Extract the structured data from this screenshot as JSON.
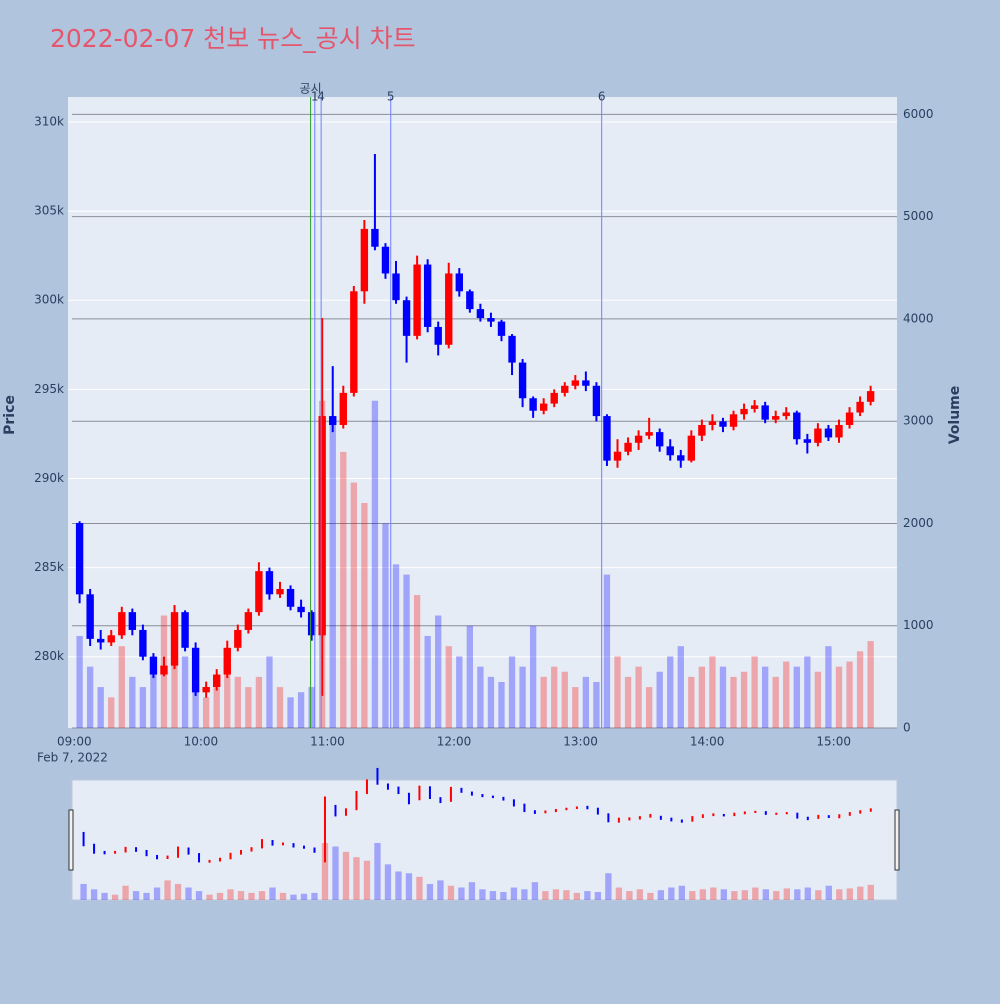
{
  "chart_data": {
    "type": "candlestick",
    "title": "2022-02-07 천보 뉴스_공시 차트",
    "y_label": "Price",
    "y2_label": "Volume",
    "x_date_label": "Feb 7, 2022",
    "up_color": "#ff0000",
    "down_color": "#0000ff",
    "grid": true,
    "rangeslider": true,
    "x": [
      "2022-02-07 09:00",
      "2022-02-07 09:05",
      "2022-02-07 09:10",
      "2022-02-07 09:15",
      "2022-02-07 09:20",
      "2022-02-07 09:25",
      "2022-02-07 09:30",
      "2022-02-07 09:35",
      "2022-02-07 09:40",
      "2022-02-07 09:45",
      "2022-02-07 09:50",
      "2022-02-07 09:55",
      "2022-02-07 10:00",
      "2022-02-07 10:05",
      "2022-02-07 10:10",
      "2022-02-07 10:15",
      "2022-02-07 10:20",
      "2022-02-07 10:25",
      "2022-02-07 10:30",
      "2022-02-07 10:35",
      "2022-02-07 10:40",
      "2022-02-07 10:45",
      "2022-02-07 10:50",
      "2022-02-07 10:55",
      "2022-02-07 11:00",
      "2022-02-07 11:05",
      "2022-02-07 11:10",
      "2022-02-07 11:15",
      "2022-02-07 11:20",
      "2022-02-07 11:25",
      "2022-02-07 11:30",
      "2022-02-07 11:35",
      "2022-02-07 11:40",
      "2022-02-07 11:45",
      "2022-02-07 11:50",
      "2022-02-07 11:55",
      "2022-02-07 12:00",
      "2022-02-07 12:05",
      "2022-02-07 12:10",
      "2022-02-07 12:15",
      "2022-02-07 12:20",
      "2022-02-07 12:25",
      "2022-02-07 12:30",
      "2022-02-07 12:35",
      "2022-02-07 12:40",
      "2022-02-07 12:45",
      "2022-02-07 12:50",
      "2022-02-07 12:55",
      "2022-02-07 13:00",
      "2022-02-07 13:05",
      "2022-02-07 13:10",
      "2022-02-07 13:15",
      "2022-02-07 13:20",
      "2022-02-07 13:25",
      "2022-02-07 13:30",
      "2022-02-07 13:35",
      "2022-02-07 13:40",
      "2022-02-07 13:45",
      "2022-02-07 13:50",
      "2022-02-07 13:55",
      "2022-02-07 14:00",
      "2022-02-07 14:05",
      "2022-02-07 14:10",
      "2022-02-07 14:15",
      "2022-02-07 14:20",
      "2022-02-07 14:25",
      "2022-02-07 14:30",
      "2022-02-07 14:35",
      "2022-02-07 14:40",
      "2022-02-07 14:45",
      "2022-02-07 14:50",
      "2022-02-07 14:55",
      "2022-02-07 15:00",
      "2022-02-07 15:05",
      "2022-02-07 15:10",
      "2022-02-07 15:15"
    ],
    "open": [
      287500,
      283500,
      281000,
      280800,
      281200,
      282500,
      281500,
      280000,
      279000,
      279500,
      282500,
      280500,
      278000,
      278300,
      279000,
      280500,
      281500,
      282500,
      284800,
      283500,
      283800,
      282800,
      282500,
      281200,
      293500,
      293000,
      294800,
      300500,
      304000,
      303000,
      301500,
      300000,
      298000,
      302000,
      298500,
      297500,
      301500,
      300500,
      299500,
      299000,
      298800,
      298000,
      296500,
      294500,
      293800,
      294200,
      294800,
      295200,
      295500,
      295200,
      293500,
      291000,
      291500,
      292000,
      292400,
      292600,
      291800,
      291300,
      291000,
      292400,
      293000,
      293200,
      292900,
      293600,
      293900,
      294100,
      293300,
      293500,
      293700,
      292200,
      292000,
      292800,
      292300,
      293000,
      293700,
      294300
    ],
    "high": [
      287600,
      283800,
      281500,
      281500,
      282800,
      282700,
      281800,
      280200,
      280000,
      282900,
      282600,
      280800,
      278600,
      279300,
      280900,
      281800,
      282700,
      285300,
      285000,
      284200,
      284000,
      283200,
      282600,
      299000,
      296300,
      295200,
      300800,
      304500,
      308200,
      303200,
      302200,
      300200,
      302500,
      302300,
      298800,
      302100,
      301800,
      300600,
      299800,
      299300,
      298900,
      298100,
      296700,
      294600,
      294500,
      295000,
      295400,
      295800,
      296000,
      295400,
      293600,
      292200,
      292300,
      292700,
      293400,
      292800,
      292200,
      291600,
      292700,
      293300,
      293600,
      293400,
      293800,
      294200,
      294400,
      294300,
      293800,
      294000,
      293800,
      292500,
      293100,
      293000,
      293300,
      294000,
      294600,
      295200
    ],
    "low": [
      283000,
      280600,
      280400,
      280600,
      281000,
      281200,
      279800,
      278800,
      278900,
      279300,
      280300,
      277800,
      277700,
      278100,
      278800,
      280300,
      281300,
      282300,
      283200,
      283300,
      282600,
      282200,
      280900,
      277800,
      292600,
      292800,
      294600,
      299800,
      302800,
      301200,
      299800,
      296500,
      297800,
      298200,
      296900,
      297300,
      300200,
      299300,
      298800,
      298500,
      297700,
      295800,
      294000,
      293400,
      293600,
      294000,
      294600,
      295000,
      294900,
      293200,
      290700,
      290600,
      291300,
      291600,
      292200,
      291500,
      291000,
      290600,
      290900,
      292100,
      292700,
      292600,
      292700,
      293300,
      293700,
      293100,
      293100,
      293300,
      291900,
      291400,
      291800,
      292100,
      292000,
      292800,
      293500,
      294100
    ],
    "close": [
      283500,
      281000,
      280800,
      281200,
      282500,
      281500,
      280000,
      279000,
      279500,
      282500,
      280500,
      278000,
      278300,
      279000,
      280500,
      281500,
      282500,
      284800,
      283500,
      283800,
      282800,
      282500,
      281200,
      293500,
      293000,
      294800,
      300500,
      304000,
      303000,
      301500,
      300000,
      298000,
      302000,
      298500,
      297500,
      301500,
      300500,
      299500,
      299000,
      298800,
      298000,
      296500,
      294500,
      293800,
      294200,
      294800,
      295200,
      295500,
      295200,
      293500,
      291000,
      291500,
      292000,
      292400,
      292600,
      291800,
      291300,
      291000,
      292400,
      293000,
      293200,
      292900,
      293600,
      293900,
      294100,
      293300,
      293500,
      293700,
      292200,
      292000,
      292800,
      292300,
      293000,
      293700,
      294300,
      294900
    ],
    "volume": [
      900,
      600,
      400,
      300,
      800,
      500,
      400,
      700,
      1100,
      900,
      700,
      500,
      300,
      400,
      600,
      500,
      400,
      500,
      700,
      400,
      300,
      350,
      400,
      3200,
      3000,
      2700,
      2400,
      2200,
      3200,
      2000,
      1600,
      1500,
      1300,
      900,
      1100,
      800,
      700,
      1000,
      600,
      500,
      450,
      700,
      600,
      1000,
      500,
      600,
      550,
      400,
      500,
      450,
      1500,
      700,
      500,
      600,
      400,
      550,
      700,
      800,
      500,
      600,
      700,
      600,
      500,
      550,
      700,
      600,
      500,
      650,
      600,
      700,
      550,
      800,
      600,
      650,
      750,
      850
    ],
    "xlim": [
      "2022-02-07 08:57",
      "2022-02-07 15:30"
    ],
    "xticks": [
      {
        "value": "2022-02-07 09:00",
        "label": "09:00"
      },
      {
        "value": "2022-02-07 10:00",
        "label": "10:00"
      },
      {
        "value": "2022-02-07 11:00",
        "label": "11:00"
      },
      {
        "value": "2022-02-07 12:00",
        "label": "12:00"
      },
      {
        "value": "2022-02-07 13:00",
        "label": "13:00"
      },
      {
        "value": "2022-02-07 14:00",
        "label": "14:00"
      },
      {
        "value": "2022-02-07 15:00",
        "label": "15:00"
      }
    ],
    "ylim": [
      276000,
      311400
    ],
    "yticks": [
      {
        "value": 280000,
        "label": "280k"
      },
      {
        "value": 285000,
        "label": "285k"
      },
      {
        "value": 290000,
        "label": "290k"
      },
      {
        "value": 295000,
        "label": "295k"
      },
      {
        "value": 300000,
        "label": "300k"
      },
      {
        "value": 305000,
        "label": "305k"
      },
      {
        "value": 310000,
        "label": "310k"
      }
    ],
    "y2lim": [
      0,
      6170
    ],
    "y2ticks": [
      0,
      1000,
      2000,
      3000,
      4000,
      5000,
      6000
    ],
    "annotations": [
      {
        "x": "2022-02-07 10:52",
        "label": "공시",
        "color": "#2ca02c"
      },
      {
        "x": "2022-02-07 10:54",
        "label": "1",
        "color": "#6f7fff"
      },
      {
        "x": "2022-02-07 10:57",
        "label": "4",
        "color": "#6f7fff"
      },
      {
        "x": "2022-02-07 11:30",
        "label": "5",
        "color": "#6f7fff"
      },
      {
        "x": "2022-02-07 13:10",
        "label": "6",
        "color": "#6f7fff"
      }
    ]
  }
}
